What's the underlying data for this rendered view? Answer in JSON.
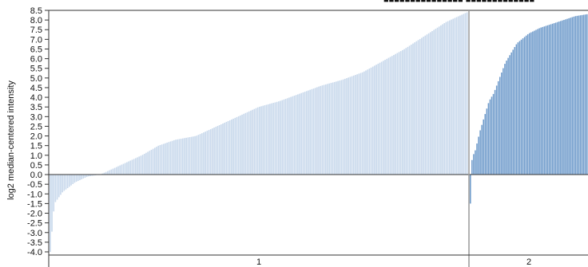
{
  "chart_data": {
    "type": "bar",
    "ylabel": "log2 median-centered intensity",
    "ylim": [
      -4.0,
      8.5
    ],
    "yticks": [
      "8.5",
      "8.0",
      "7.5",
      "7.0",
      "6.5",
      "6.0",
      "5.5",
      "5.0",
      "4.5",
      "4.0",
      "3.5",
      "3.0",
      "2.5",
      "2.0",
      "1.5",
      "1.0",
      "0.5",
      "0.0",
      "-0.5",
      "-1.0",
      "-1.5",
      "-2.0",
      "-2.5",
      "-3.0",
      "-3.5",
      "-4.0"
    ],
    "grid": false,
    "groups": [
      {
        "name": "1",
        "color": "#c9d9ec",
        "profile": [
          [
            0,
            -4.0
          ],
          [
            0.01,
            -1.5
          ],
          [
            0.03,
            -0.9
          ],
          [
            0.06,
            -0.4
          ],
          [
            0.09,
            -0.1
          ],
          [
            0.12,
            0.0
          ],
          [
            0.15,
            0.3
          ],
          [
            0.18,
            0.6
          ],
          [
            0.22,
            1.0
          ],
          [
            0.26,
            1.5
          ],
          [
            0.3,
            1.8
          ],
          [
            0.35,
            2.0
          ],
          [
            0.4,
            2.5
          ],
          [
            0.45,
            3.0
          ],
          [
            0.5,
            3.5
          ],
          [
            0.55,
            3.8
          ],
          [
            0.6,
            4.2
          ],
          [
            0.65,
            4.6
          ],
          [
            0.7,
            4.9
          ],
          [
            0.75,
            5.3
          ],
          [
            0.8,
            5.9
          ],
          [
            0.85,
            6.5
          ],
          [
            0.9,
            7.2
          ],
          [
            0.95,
            7.9
          ],
          [
            1.0,
            8.4
          ]
        ]
      },
      {
        "name": "2",
        "color": "#6f9bcb",
        "profile": [
          [
            0,
            -1.5
          ],
          [
            0.015,
            0.9
          ],
          [
            0.04,
            1.2
          ],
          [
            0.08,
            2.2
          ],
          [
            0.12,
            3.0
          ],
          [
            0.16,
            3.8
          ],
          [
            0.2,
            4.2
          ],
          [
            0.25,
            5.0
          ],
          [
            0.3,
            5.8
          ],
          [
            0.35,
            6.3
          ],
          [
            0.4,
            6.8
          ],
          [
            0.5,
            7.3
          ],
          [
            0.6,
            7.6
          ],
          [
            0.7,
            7.8
          ],
          [
            0.8,
            8.0
          ],
          [
            0.9,
            8.2
          ],
          [
            1.0,
            8.3
          ]
        ]
      }
    ],
    "legend_text": "■■■■■■■■■■■■■■■ ■■■■■■■■■■■■■"
  }
}
